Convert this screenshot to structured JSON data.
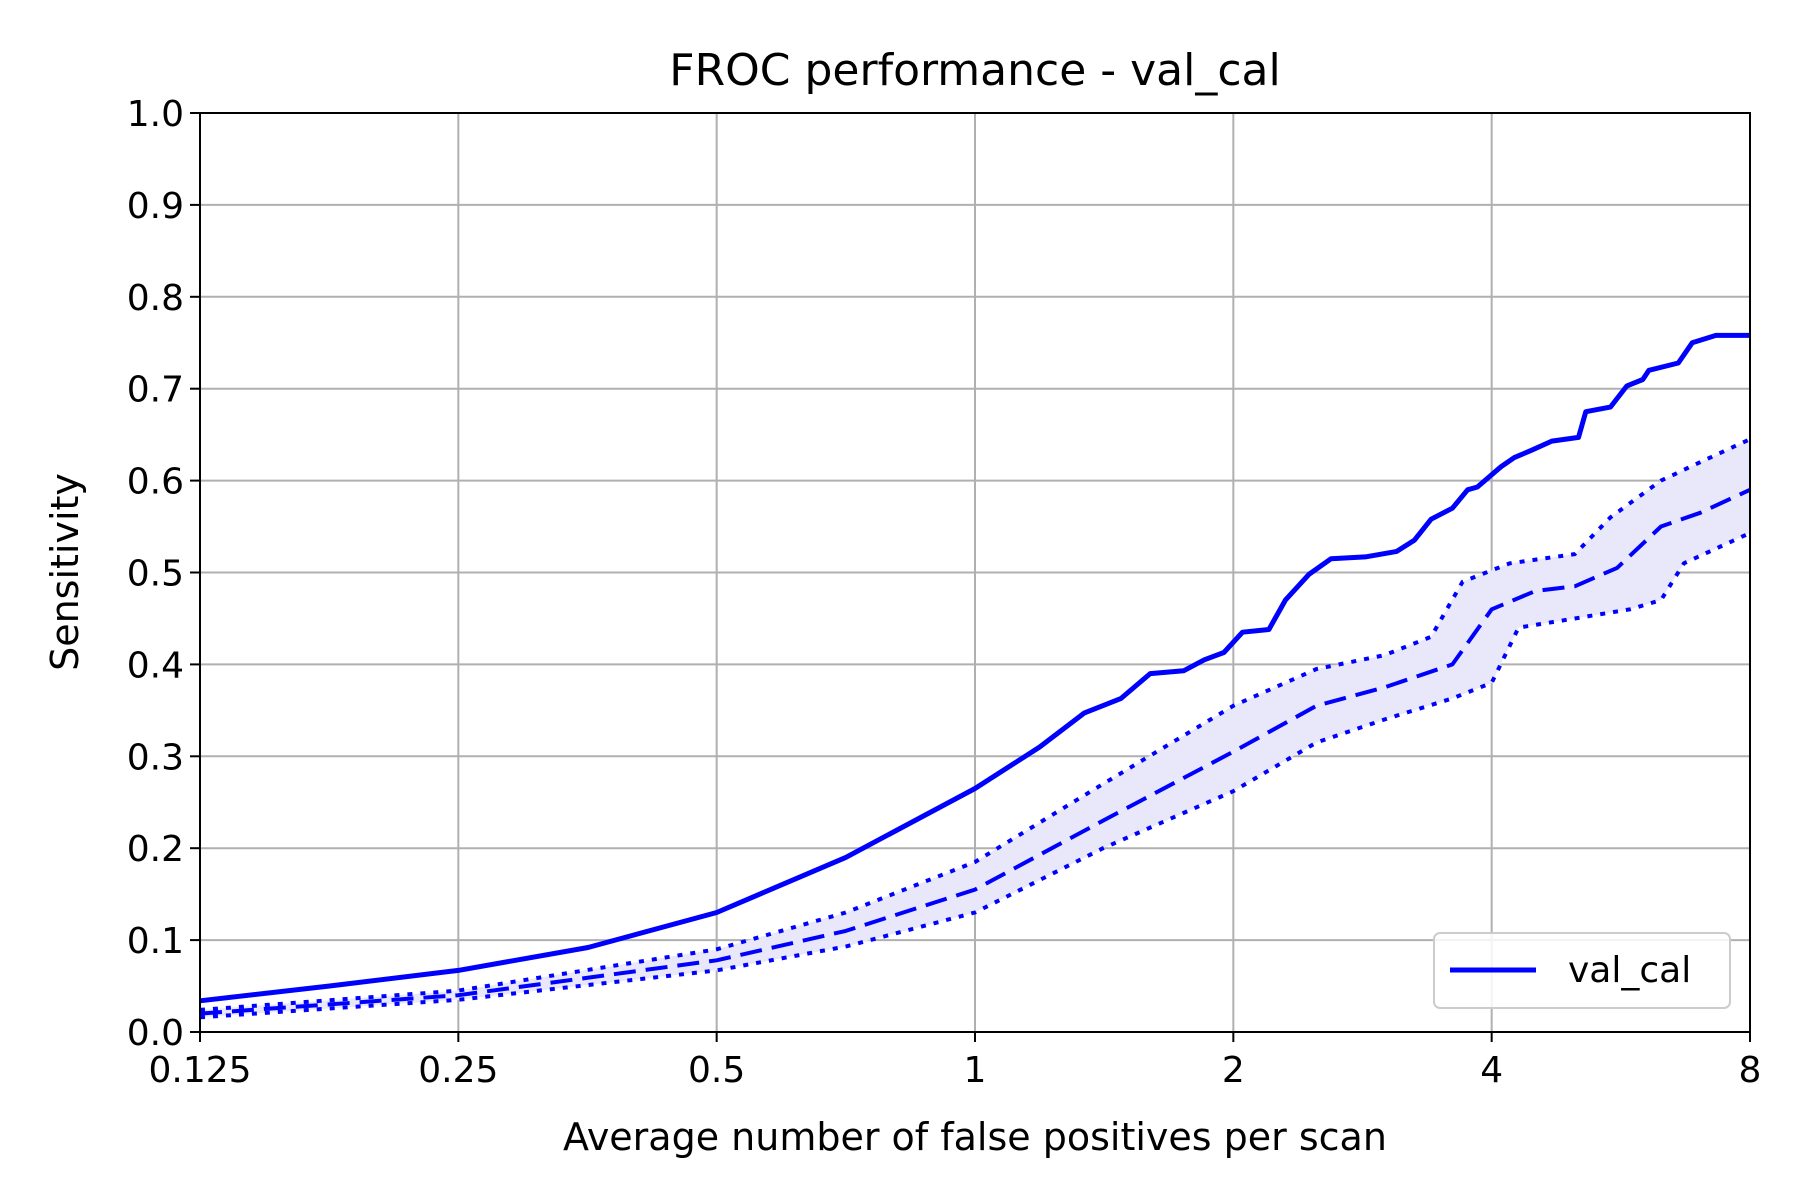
{
  "chart_data": {
    "type": "line",
    "title": "FROC performance - val_cal",
    "xlabel": "Average number of false positives per scan",
    "ylabel": "Sensitivity",
    "x_scale": "log2",
    "xlim": [
      0.125,
      8
    ],
    "ylim": [
      0.0,
      1.0
    ],
    "x_ticks": [
      0.125,
      0.25,
      0.5,
      1,
      2,
      4,
      8
    ],
    "x_tick_labels": [
      "0.125",
      "0.25",
      "0.5",
      "1",
      "2",
      "4",
      "8"
    ],
    "y_ticks": [
      0.0,
      0.1,
      0.2,
      0.3,
      0.4,
      0.5,
      0.6,
      0.7,
      0.8,
      0.9,
      1.0
    ],
    "y_tick_labels": [
      "0.0",
      "0.1",
      "0.2",
      "0.3",
      "0.4",
      "0.5",
      "0.6",
      "0.7",
      "0.8",
      "0.9",
      "1.0"
    ],
    "grid": true,
    "legend_position": "lower-right",
    "colors": {
      "series": "#0000ff",
      "band": "#e8e8fa",
      "grid": "#b0b0b0"
    },
    "series": [
      {
        "name": "val_cal",
        "style": "solid",
        "points": [
          [
            0.125,
            0.034
          ],
          [
            0.177,
            0.05
          ],
          [
            0.25,
            0.067
          ],
          [
            0.354,
            0.092
          ],
          [
            0.5,
            0.13
          ],
          [
            0.707,
            0.19
          ],
          [
            1.0,
            0.265
          ],
          [
            1.189,
            0.31
          ],
          [
            1.34,
            0.347
          ],
          [
            1.48,
            0.363
          ],
          [
            1.6,
            0.39
          ],
          [
            1.75,
            0.393
          ],
          [
            1.85,
            0.405
          ],
          [
            1.95,
            0.413
          ],
          [
            2.05,
            0.435
          ],
          [
            2.2,
            0.438
          ],
          [
            2.3,
            0.47
          ],
          [
            2.45,
            0.498
          ],
          [
            2.6,
            0.515
          ],
          [
            2.85,
            0.517
          ],
          [
            3.1,
            0.523
          ],
          [
            3.25,
            0.535
          ],
          [
            3.4,
            0.558
          ],
          [
            3.6,
            0.57
          ],
          [
            3.75,
            0.59
          ],
          [
            3.85,
            0.593
          ],
          [
            4.1,
            0.615
          ],
          [
            4.25,
            0.625
          ],
          [
            4.45,
            0.633
          ],
          [
            4.7,
            0.643
          ],
          [
            5.05,
            0.647
          ],
          [
            5.15,
            0.675
          ],
          [
            5.5,
            0.68
          ],
          [
            5.75,
            0.703
          ],
          [
            6.0,
            0.71
          ],
          [
            6.1,
            0.72
          ],
          [
            6.6,
            0.728
          ],
          [
            6.85,
            0.75
          ],
          [
            7.3,
            0.758
          ],
          [
            8.0,
            0.758
          ]
        ]
      },
      {
        "name": "",
        "style": "dashed",
        "points": [
          [
            0.125,
            0.02
          ],
          [
            0.25,
            0.04
          ],
          [
            0.5,
            0.078
          ],
          [
            0.707,
            0.11
          ],
          [
            1.0,
            0.155
          ],
          [
            1.41,
            0.23
          ],
          [
            2.0,
            0.305
          ],
          [
            2.5,
            0.355
          ],
          [
            3.0,
            0.375
          ],
          [
            3.6,
            0.4
          ],
          [
            4.0,
            0.46
          ],
          [
            4.5,
            0.48
          ],
          [
            5.0,
            0.485
          ],
          [
            5.6,
            0.505
          ],
          [
            6.3,
            0.55
          ],
          [
            7.0,
            0.565
          ],
          [
            8.0,
            0.59
          ]
        ]
      },
      {
        "name": "",
        "style": "dotted",
        "points": [
          [
            0.125,
            0.024
          ],
          [
            0.25,
            0.045
          ],
          [
            0.5,
            0.09
          ],
          [
            0.707,
            0.13
          ],
          [
            1.0,
            0.185
          ],
          [
            1.41,
            0.27
          ],
          [
            2.0,
            0.355
          ],
          [
            2.5,
            0.395
          ],
          [
            3.0,
            0.41
          ],
          [
            3.4,
            0.43
          ],
          [
            3.7,
            0.49
          ],
          [
            4.2,
            0.51
          ],
          [
            5.0,
            0.52
          ],
          [
            5.5,
            0.56
          ],
          [
            6.3,
            0.6
          ],
          [
            7.0,
            0.62
          ],
          [
            8.0,
            0.645
          ]
        ]
      },
      {
        "name": "",
        "style": "dotted",
        "points": [
          [
            0.125,
            0.016
          ],
          [
            0.25,
            0.035
          ],
          [
            0.5,
            0.067
          ],
          [
            0.707,
            0.093
          ],
          [
            1.0,
            0.13
          ],
          [
            1.41,
            0.2
          ],
          [
            2.0,
            0.262
          ],
          [
            2.5,
            0.315
          ],
          [
            3.0,
            0.34
          ],
          [
            3.6,
            0.363
          ],
          [
            4.0,
            0.38
          ],
          [
            4.3,
            0.44
          ],
          [
            5.0,
            0.45
          ],
          [
            5.8,
            0.46
          ],
          [
            6.3,
            0.47
          ],
          [
            6.7,
            0.51
          ],
          [
            8.0,
            0.543
          ]
        ]
      }
    ]
  }
}
